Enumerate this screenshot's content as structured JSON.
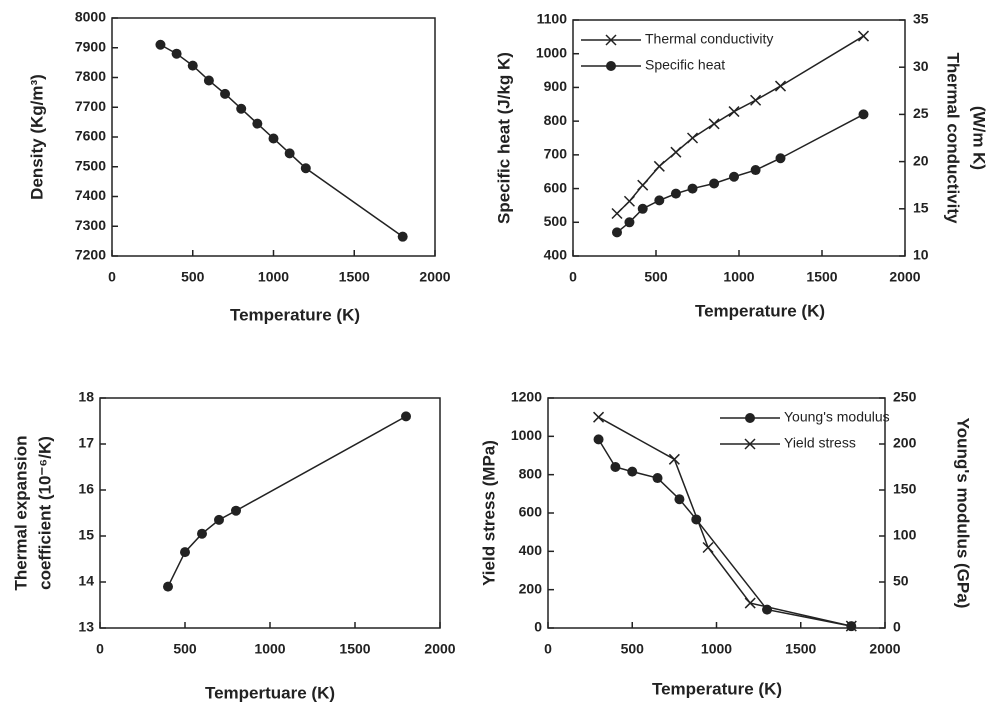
{
  "chart_data": [
    {
      "type": "line",
      "xlabel": "Temperature (K)",
      "ylabel": "Density (Kg/m³)",
      "xlim": [
        0,
        2000
      ],
      "xticks": [
        0,
        500,
        1000,
        1500,
        2000
      ],
      "ylim": [
        7200,
        8000
      ],
      "yticks": [
        7200,
        7300,
        7400,
        7500,
        7600,
        7700,
        7800,
        7900,
        8000
      ],
      "series": [
        {
          "color": "#222222",
          "marker": "circle",
          "axis": "y",
          "x": [
            300,
            400,
            500,
            600,
            700,
            800,
            900,
            1000,
            1100,
            1200,
            1800
          ],
          "values": [
            7910,
            7880,
            7840,
            7790,
            7745,
            7695,
            7645,
            7595,
            7545,
            7495,
            7265
          ]
        }
      ]
    },
    {
      "type": "line",
      "xlabel": "Temperature (K)",
      "ylabel": "Specific heat (J/kg K)",
      "y2label": [
        "Thermal conductivity",
        "(W/m K)"
      ],
      "xlim": [
        0,
        2000
      ],
      "xticks": [
        0,
        500,
        1000,
        1500,
        2000
      ],
      "ylim": [
        400,
        1100
      ],
      "yticks": [
        400,
        500,
        600,
        700,
        800,
        900,
        1000,
        1100
      ],
      "y2lim": [
        10,
        35
      ],
      "y2ticks": [
        10,
        15,
        20,
        25,
        30,
        35
      ],
      "legend": "top-left",
      "series": [
        {
          "name": "Thermal conductivity",
          "color": "#222222",
          "marker": "x",
          "axis": "y2",
          "x": [
            265,
            340,
            420,
            520,
            620,
            720,
            850,
            970,
            1100,
            1250,
            1750
          ],
          "values": [
            14.5,
            15.8,
            17.5,
            19.5,
            21,
            22.5,
            24,
            25.3,
            26.5,
            28,
            33.3
          ]
        },
        {
          "name": "Specific heat",
          "color": "#222222",
          "marker": "circle",
          "axis": "y",
          "x": [
            265,
            340,
            420,
            520,
            620,
            720,
            850,
            970,
            1100,
            1250,
            1750
          ],
          "values": [
            470,
            500,
            540,
            565,
            585,
            600,
            615,
            635,
            655,
            690,
            820
          ]
        }
      ]
    },
    {
      "type": "line",
      "xlabel": "Tempertuare (K)",
      "ylabel": [
        "Thermal expansion",
        "coefficient (10⁻⁶/K)"
      ],
      "xlim": [
        0,
        2000
      ],
      "xticks": [
        0,
        500,
        1000,
        1500,
        2000
      ],
      "ylim": [
        13,
        18
      ],
      "yticks": [
        13,
        14,
        15,
        16,
        17,
        18
      ],
      "series": [
        {
          "color": "#222222",
          "marker": "circle",
          "axis": "y",
          "x": [
            400,
            500,
            600,
            700,
            800,
            1800
          ],
          "values": [
            13.9,
            14.65,
            15.05,
            15.35,
            15.55,
            17.6
          ]
        }
      ]
    },
    {
      "type": "line",
      "xlabel": "Temperature (K)",
      "ylabel": "Yield stress (MPa)",
      "y2label": [
        "Young's modulus (GPa)"
      ],
      "xlim": [
        0,
        2000
      ],
      "xticks": [
        0,
        500,
        1000,
        1500,
        2000
      ],
      "ylim": [
        0,
        1200
      ],
      "yticks": [
        0,
        200,
        400,
        600,
        800,
        1000,
        1200
      ],
      "y2lim": [
        0,
        250
      ],
      "y2ticks": [
        0,
        50,
        100,
        150,
        200,
        250
      ],
      "legend": "top-right",
      "series": [
        {
          "name": "Young's modulus",
          "color": "#222222",
          "marker": "circle",
          "axis": "y2",
          "x": [
            300,
            400,
            500,
            650,
            780,
            880,
            1300,
            1800
          ],
          "values": [
            205,
            175,
            170,
            163,
            140,
            118,
            20,
            2
          ]
        },
        {
          "name": "Yield stress",
          "color": "#222222",
          "marker": "x",
          "axis": "y",
          "x": [
            300,
            750,
            950,
            1200,
            1800
          ],
          "values": [
            1100,
            880,
            420,
            130,
            10
          ]
        }
      ]
    }
  ]
}
